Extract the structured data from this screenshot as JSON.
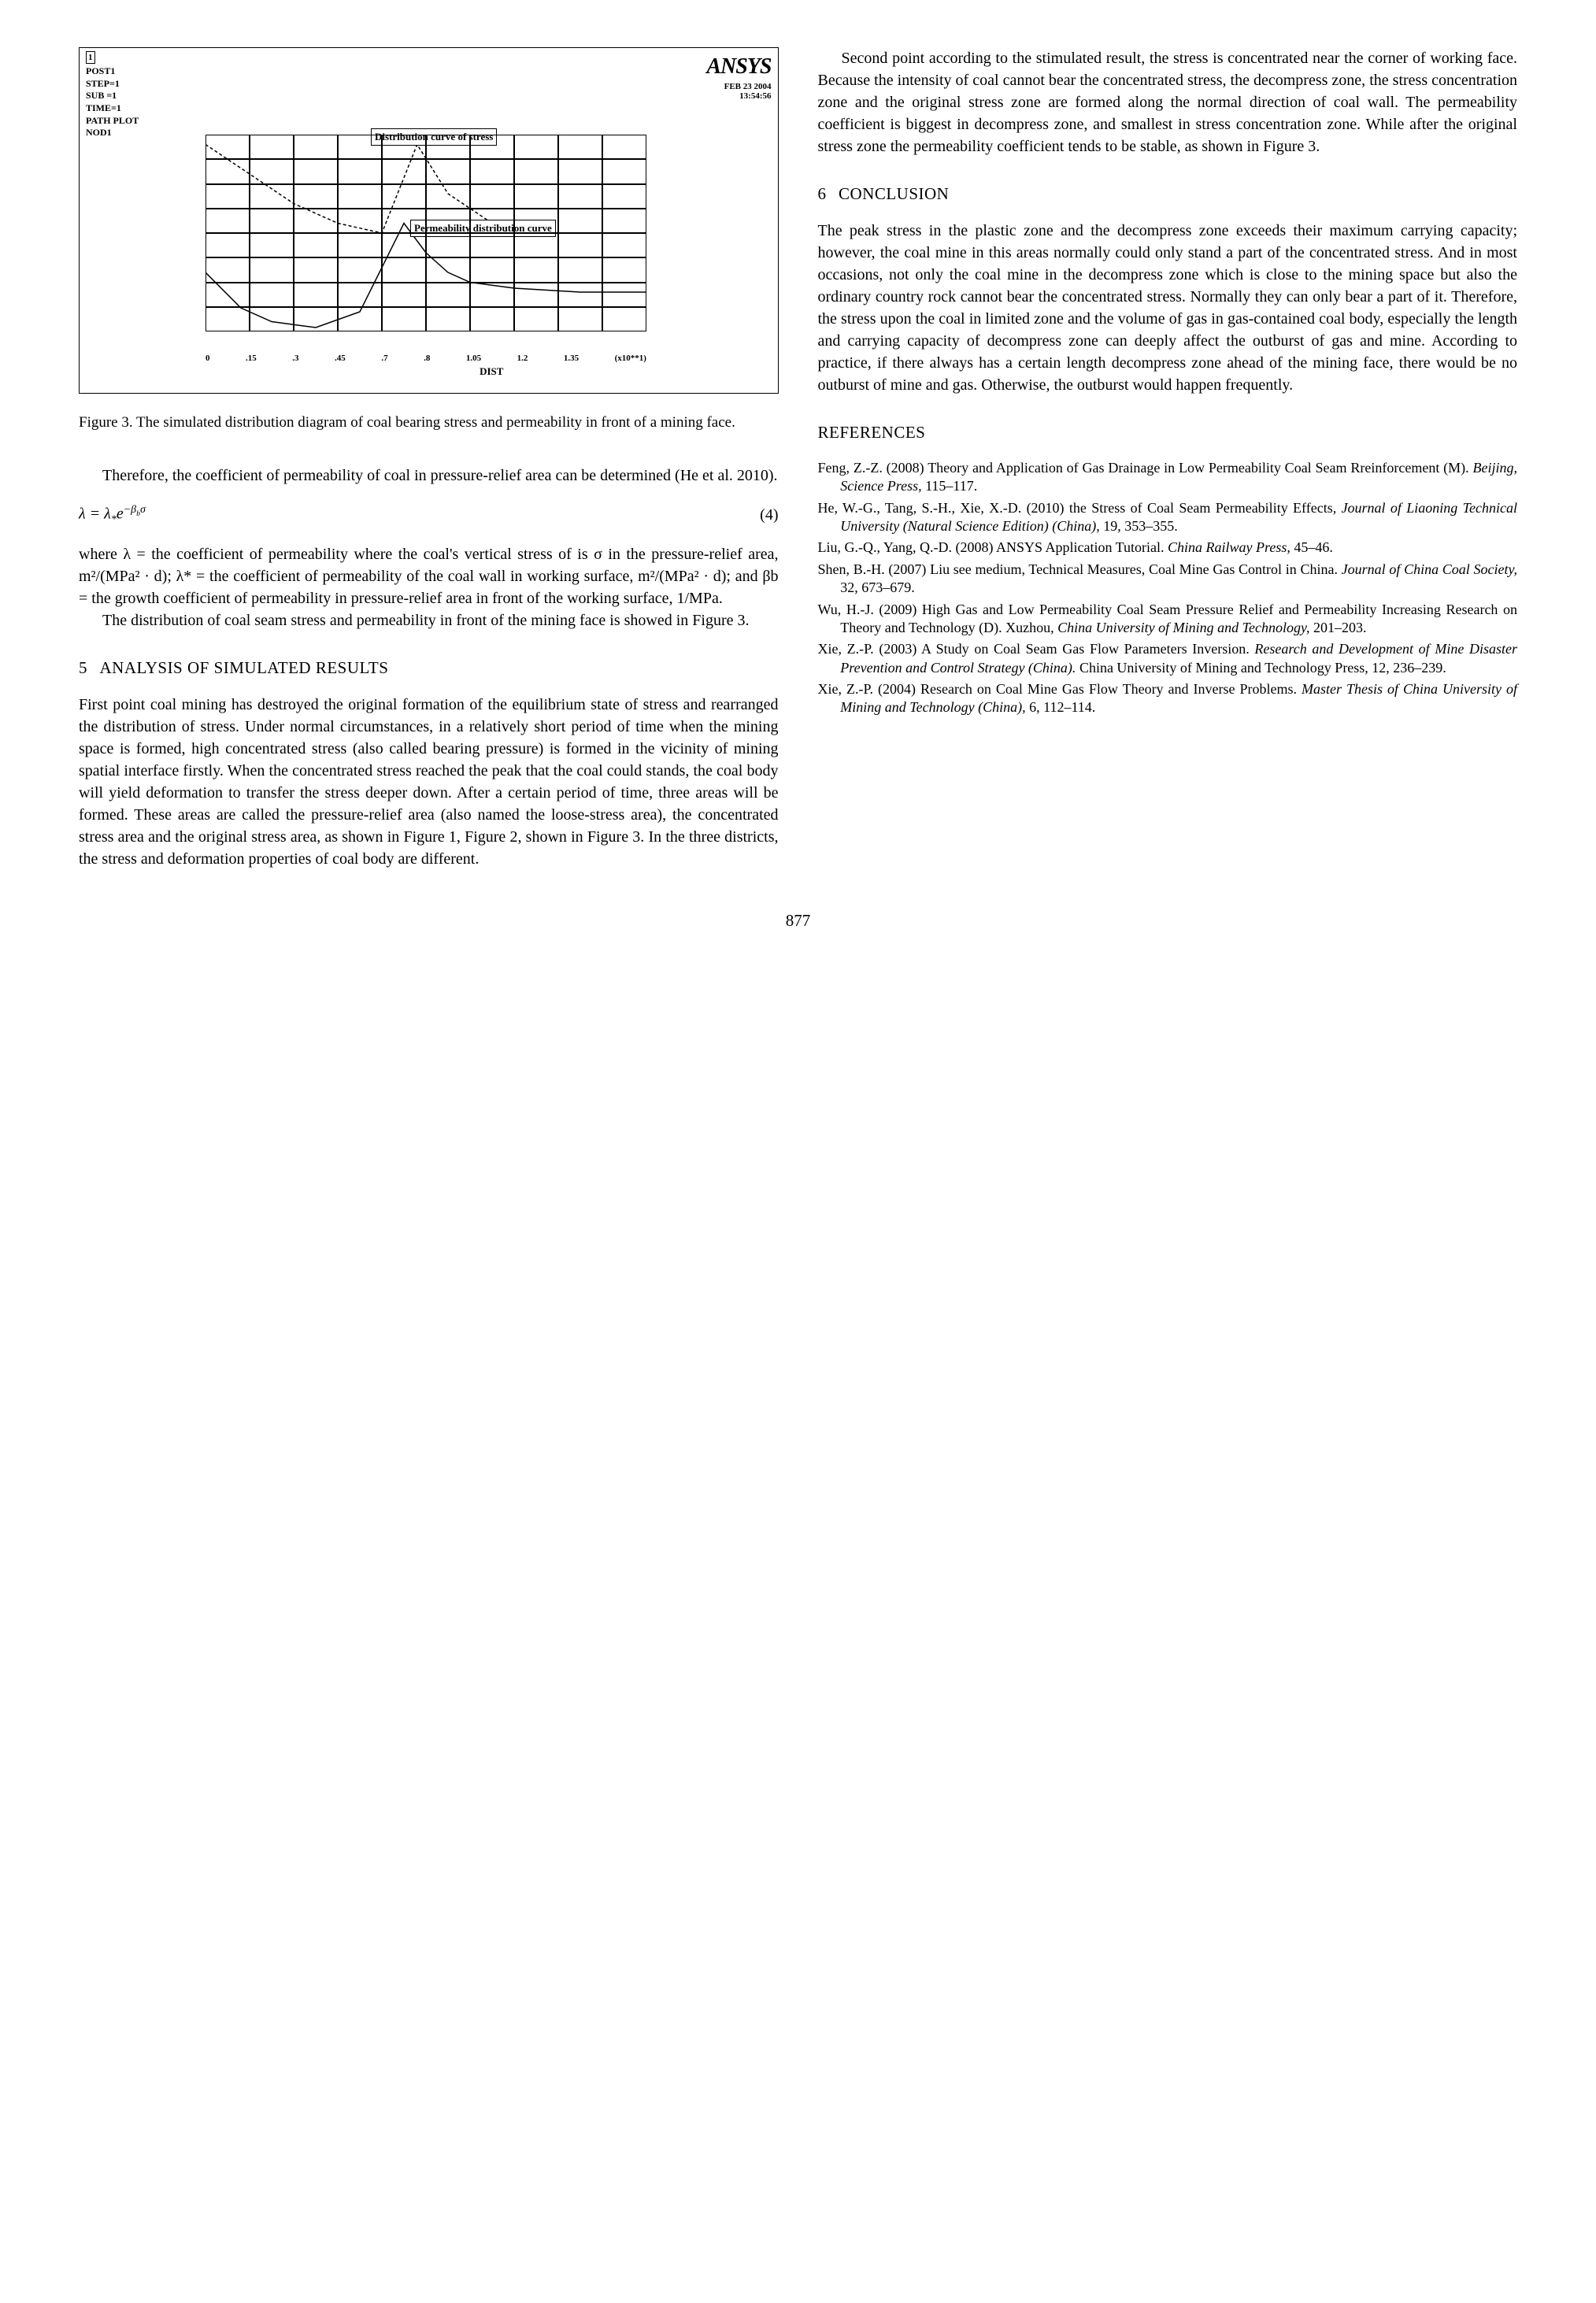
{
  "figure3": {
    "topleft_lines": [
      "POST1",
      "STEP=1",
      "SUB =1",
      "TIME=1",
      "PATH PLOT",
      "NOD1"
    ],
    "topleft_index": "1",
    "ansys": "ANSYS",
    "date_line1": "FEB 23 2004",
    "date_line2": "13:54:56",
    "label1": "Distribution curve of stress",
    "label2": "Permeability distribution curve",
    "x_ticks": [
      "0",
      ".15",
      ".3",
      ".45",
      ".7",
      ".8",
      "1.05",
      "1.2",
      "1.35",
      "(x10**1)"
    ],
    "x_title": "DIST",
    "grid_cols": 10,
    "grid_rows": 8,
    "grid_color": "#000000",
    "stress_curve": [
      [
        0,
        0.3
      ],
      [
        0.08,
        0.12
      ],
      [
        0.15,
        0.05
      ],
      [
        0.25,
        0.02
      ],
      [
        0.35,
        0.1
      ],
      [
        0.45,
        0.55
      ],
      [
        0.5,
        0.4
      ],
      [
        0.55,
        0.3
      ],
      [
        0.6,
        0.25
      ],
      [
        0.7,
        0.22
      ],
      [
        0.85,
        0.2
      ],
      [
        1.0,
        0.2
      ]
    ],
    "perm_curve": [
      [
        0,
        0.95
      ],
      [
        0.1,
        0.8
      ],
      [
        0.2,
        0.65
      ],
      [
        0.3,
        0.55
      ],
      [
        0.4,
        0.5
      ],
      [
        0.48,
        0.95
      ],
      [
        0.55,
        0.7
      ],
      [
        0.65,
        0.55
      ],
      [
        0.78,
        0.5
      ],
      [
        0.9,
        0.5
      ],
      [
        1.0,
        0.5
      ]
    ]
  },
  "caption3": "Figure 3.   The simulated distribution diagram of coal bearing stress and permeability in front of a mining face.",
  "para_therefore": "Therefore, the coefficient of permeability of coal in pressure-relief area can be determined (He et al. 2010).",
  "eq4_left": "λ = λ",
  "eq4_sub": "*",
  "eq4_exp": "e",
  "eq4_sup_neg": "−β",
  "eq4_sup_sub": "b",
  "eq4_sup_sigma": "σ",
  "eq4_num": "(4)",
  "para_where": "where  λ = the coefficient of permeability where the coal's vertical stress of is  σ  in the pressure-relief area, m²/(MPa² · d);  λ* = the coefficient of permeability of the coal wall in working surface, m²/(MPa² · d); and  βb = the growth coefficient of permeability in pressure-relief area in front of the working surface, 1/MPa.",
  "para_dist": "The distribution of coal seam stress and permeability in front of the mining face is showed in Figure 3.",
  "sec5_num": "5",
  "sec5_title": "ANALYSIS OF SIMULATED RESULTS",
  "para_first": "First point coal mining has destroyed the original formation of the equilibrium state of stress and rearranged the distribution of stress. Under normal circumstances, in a relatively short period of time when the mining space is formed, high concentrated stress (also called bearing pressure) is formed in the vicinity of mining spatial interface firstly. When the concentrated stress reached the peak that the coal could stands, the coal body will yield deformation to transfer the stress deeper down. After a certain period of time, three areas will be formed. These areas are called the pressure-relief area (also named the loose-stress area), the concentrated stress area and the original stress area, as shown in Figure 1, Figure 2, shown in Figure 3. In the three districts, the stress and deformation properties of coal body are different.",
  "para_second": "Second point according to the stimulated result, the stress is concentrated near the corner of working face. Because the intensity of coal cannot bear the concentrated stress, the decompress zone, the stress concentration zone and the original stress zone are formed along the normal direction of coal wall. The permeability coefficient is biggest in decompress zone, and smallest in stress concentration zone. While after the original stress zone the permeability coefficient tends to be stable, as shown in Figure 3.",
  "sec6_num": "6",
  "sec6_title": "CONCLUSION",
  "para_concl": "The peak stress in the plastic zone and the decompress zone exceeds their maximum carrying capacity; however, the coal mine in this areas normally could only stand a part of the concentrated stress. And in most occasions, not only the coal mine in the decompress zone which is close to the mining space but also the ordinary country rock cannot bear the concentrated stress. Normally they can only bear a part of it. Therefore, the stress upon the coal in limited zone and the volume of gas in gas-contained coal body, especially the length and carrying capacity of decompress zone can deeply affect the outburst of gas and mine. According to practice, if there always has a certain length decompress zone ahead of the mining face, there would be no outburst of mine and gas. Otherwise, the outburst would happen frequently.",
  "refs_title": "REFERENCES",
  "refs": [
    {
      "plain": "Feng, Z.-Z. (2008) Theory and Application of Gas Drainage in Low Permeability Coal Seam Rreinforcement (M). ",
      "ital": "Beijing, Science Press,",
      "tail": " 115–117."
    },
    {
      "plain": "He, W.-G., Tang, S.-H., Xie, X.-D. (2010) the Stress of Coal Seam Permeability Effects, ",
      "ital": "Journal of Liaoning Technical University (Natural Science Edition) (China),",
      "tail": " 19, 353–355."
    },
    {
      "plain": "Liu, G.-Q., Yang, Q.-D. (2008) ANSYS Application Tutorial. ",
      "ital": "China Railway Press,",
      "tail": " 45–46."
    },
    {
      "plain": "Shen, B.-H. (2007) Liu see medium, Technical Measures, Coal Mine Gas Control in China. ",
      "ital": "Journal of China Coal Society,",
      "tail": " 32, 673–679."
    },
    {
      "plain": "Wu, H.-J. (2009) High Gas and Low Permeability Coal Seam Pressure Relief and Permeability Increasing Research on Theory and Technology (D). Xuzhou, ",
      "ital": "China University of Mining and Technology,",
      "tail": " 201–203."
    },
    {
      "plain": "Xie, Z.-P. (2003) A Study on Coal Seam Gas Flow Parameters Inversion. ",
      "ital": "Research and Development of Mine Disaster Prevention and Control Strategy (China).",
      "tail": " China University of Mining and Technology Press, 12, 236–239."
    },
    {
      "plain": "Xie, Z.-P. (2004) Research on Coal Mine Gas Flow Theory and Inverse Problems. ",
      "ital": "Master Thesis of China University of Mining and Technology (China),",
      "tail": " 6, 112–114."
    }
  ],
  "page_num": "877"
}
